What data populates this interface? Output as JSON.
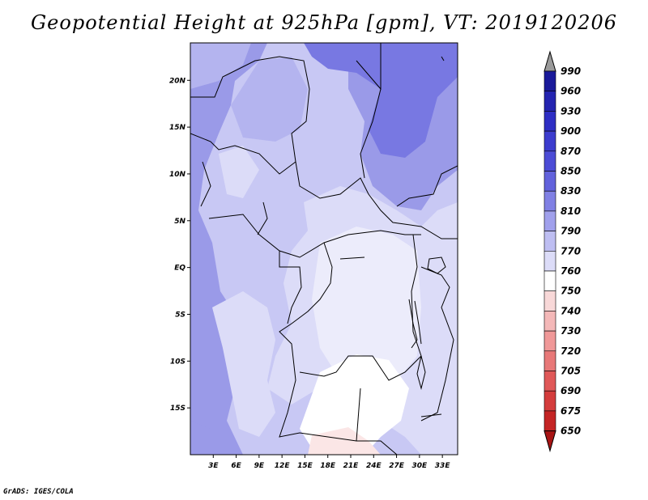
{
  "title": "Geopotential Height at 925hPa [gpm], VT: 2019120206",
  "credit": "GrADS: IGES/COLA",
  "lat_labels": [
    "20N",
    "15N",
    "10N",
    "5N",
    "EQ",
    "5S",
    "10S",
    "15S"
  ],
  "lon_labels": [
    "3E",
    "6E",
    "9E",
    "12E",
    "15E",
    "18E",
    "21E",
    "24E",
    "27E",
    "30E",
    "33E"
  ],
  "colorbar": {
    "labels": [
      "990",
      "960",
      "930",
      "900",
      "870",
      "850",
      "830",
      "810",
      "790",
      "770",
      "760",
      "750",
      "740",
      "730",
      "720",
      "705",
      "690",
      "675",
      "650"
    ],
    "colors": [
      "#1a1a9a",
      "#2424b0",
      "#2e2ec4",
      "#3c3cce",
      "#4c4cd6",
      "#6262dc",
      "#8080e4",
      "#a0a0ec",
      "#bebef2",
      "#dcdcf8",
      "#ffffff",
      "#f8d8d8",
      "#f4b8b8",
      "#f09898",
      "#e87878",
      "#e05858",
      "#d43c3c",
      "#c42424",
      "#a81414"
    ],
    "top_triangle": "#9a9a9a"
  },
  "map": {
    "domain": {
      "lon": [
        0,
        35
      ],
      "lat": [
        -20,
        24
      ]
    },
    "colors": {
      "h870": "#7878e2",
      "h850": "#9a9ae8",
      "h830": "#b4b4ef",
      "h810": "#c8c8f4",
      "h790": "#dcdcf8",
      "h770": "#ececfb",
      "h760": "#ffffff",
      "h750": "#fbe6e6"
    }
  }
}
